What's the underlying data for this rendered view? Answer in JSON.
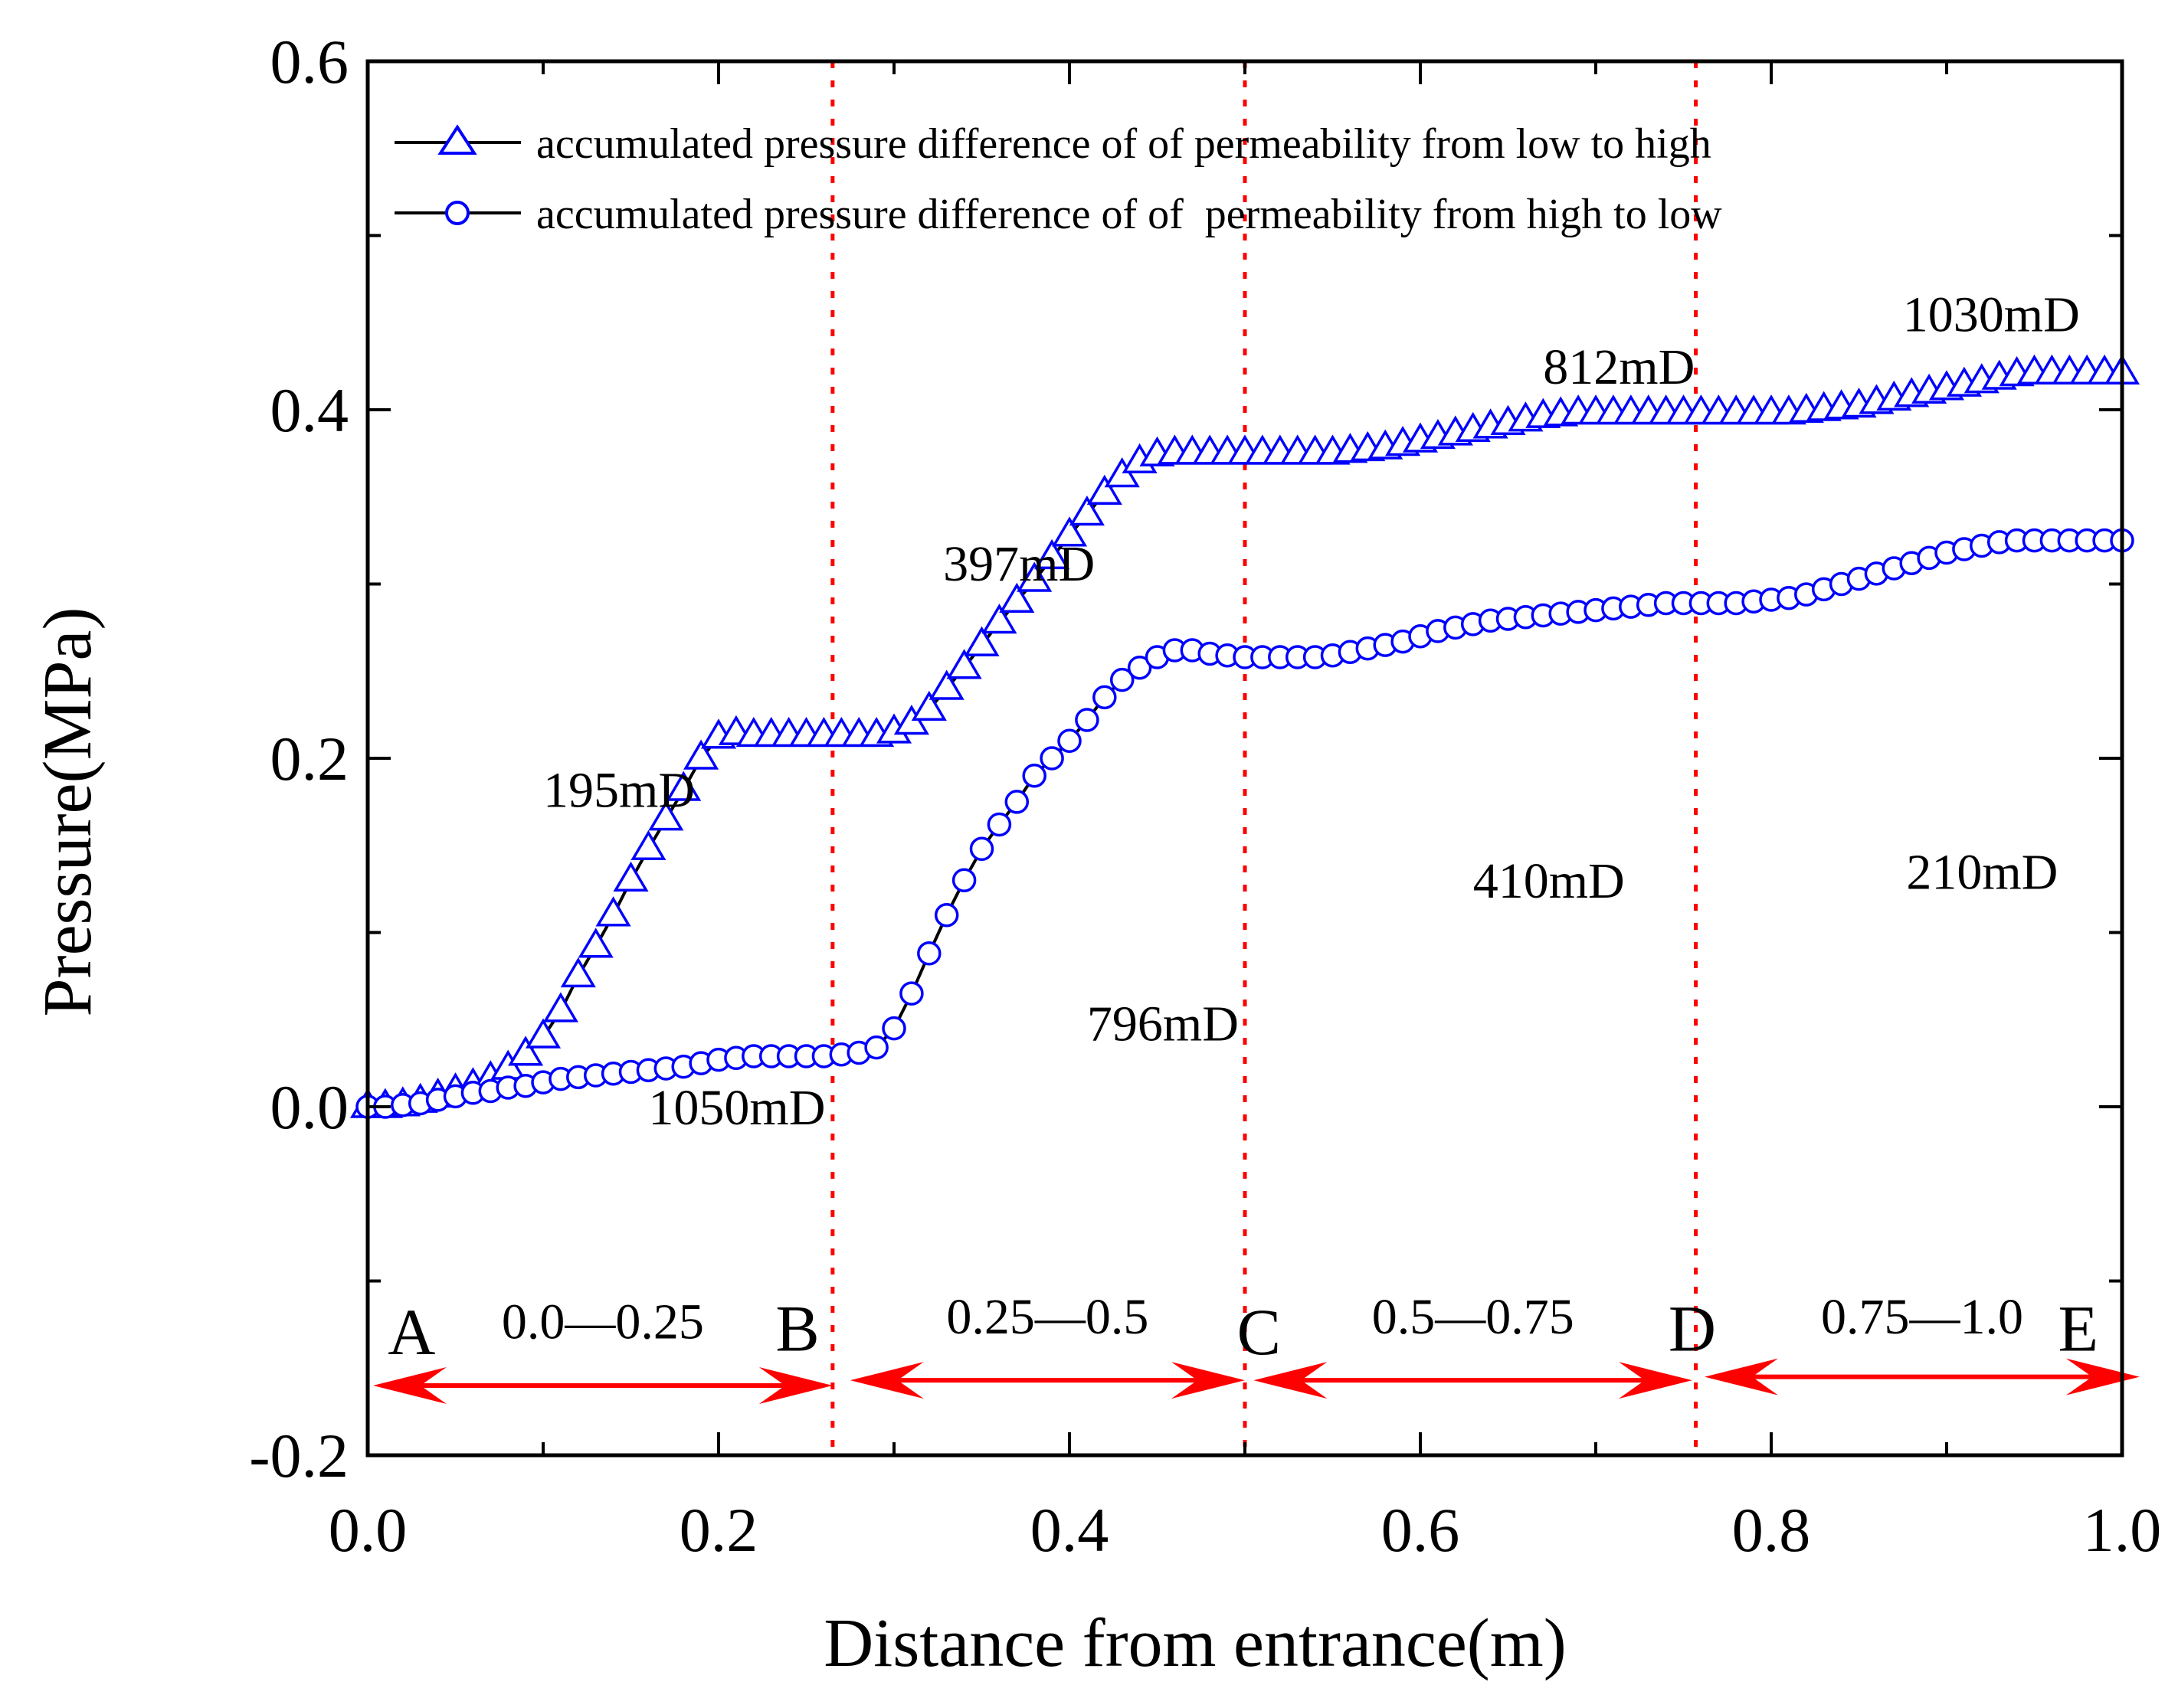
{
  "chart_data": {
    "type": "line",
    "xlabel": "Distance from entrance(m)",
    "ylabel": "Pressure(MPa)",
    "xlim": [
      0.0,
      1.0
    ],
    "ylim": [
      -0.2,
      0.6
    ],
    "x_ticks": [
      "0.0",
      "0.2",
      "0.4",
      "0.6",
      "0.8",
      "1.0"
    ],
    "y_ticks": [
      "-0.2",
      "0.0",
      "0.2",
      "0.4",
      "0.6"
    ],
    "x_tick_values": [
      0.0,
      0.2,
      0.4,
      0.6,
      0.8,
      1.0
    ],
    "y_tick_values": [
      -0.2,
      0.0,
      0.2,
      0.4,
      0.6
    ],
    "grid": false,
    "legend_position": "top",
    "section_lines_x": [
      0.265,
      0.5,
      0.757
    ],
    "series": [
      {
        "name": "accumulated pressure difference of of permeability from low to high",
        "marker": "triangle",
        "color": "#0000ff",
        "x": [
          0.0,
          0.01,
          0.02,
          0.03,
          0.04,
          0.05,
          0.06,
          0.07,
          0.08,
          0.09,
          0.1,
          0.11,
          0.12,
          0.13,
          0.14,
          0.15,
          0.16,
          0.17,
          0.18,
          0.19,
          0.2,
          0.21,
          0.22,
          0.23,
          0.24,
          0.25,
          0.26,
          0.27,
          0.28,
          0.29,
          0.3,
          0.31,
          0.32,
          0.33,
          0.34,
          0.35,
          0.36,
          0.37,
          0.38,
          0.39,
          0.4,
          0.41,
          0.42,
          0.43,
          0.44,
          0.45,
          0.46,
          0.47,
          0.48,
          0.49,
          0.5,
          0.51,
          0.52,
          0.53,
          0.54,
          0.55,
          0.56,
          0.57,
          0.58,
          0.59,
          0.6,
          0.61,
          0.62,
          0.63,
          0.64,
          0.65,
          0.66,
          0.67,
          0.68,
          0.69,
          0.7,
          0.71,
          0.72,
          0.73,
          0.74,
          0.75,
          0.76,
          0.77,
          0.78,
          0.79,
          0.8,
          0.81,
          0.82,
          0.83,
          0.84,
          0.85,
          0.86,
          0.87,
          0.88,
          0.89,
          0.9,
          0.91,
          0.92,
          0.93,
          0.94,
          0.95,
          0.96,
          0.97,
          0.98,
          0.99,
          1.0
        ],
        "values": [
          0.0,
          0.0,
          0.001,
          0.003,
          0.006,
          0.009,
          0.012,
          0.016,
          0.022,
          0.03,
          0.04,
          0.055,
          0.075,
          0.092,
          0.11,
          0.13,
          0.148,
          0.165,
          0.182,
          0.2,
          0.212,
          0.214,
          0.213,
          0.213,
          0.213,
          0.213,
          0.213,
          0.213,
          0.213,
          0.213,
          0.215,
          0.22,
          0.228,
          0.24,
          0.252,
          0.265,
          0.278,
          0.29,
          0.302,
          0.315,
          0.328,
          0.34,
          0.352,
          0.362,
          0.37,
          0.374,
          0.375,
          0.375,
          0.375,
          0.375,
          0.375,
          0.375,
          0.375,
          0.375,
          0.375,
          0.375,
          0.376,
          0.377,
          0.378,
          0.38,
          0.382,
          0.384,
          0.386,
          0.388,
          0.39,
          0.392,
          0.394,
          0.396,
          0.397,
          0.398,
          0.398,
          0.398,
          0.398,
          0.398,
          0.398,
          0.398,
          0.398,
          0.398,
          0.398,
          0.398,
          0.398,
          0.398,
          0.399,
          0.4,
          0.401,
          0.402,
          0.404,
          0.406,
          0.408,
          0.41,
          0.412,
          0.414,
          0.416,
          0.418,
          0.42,
          0.421,
          0.421,
          0.421,
          0.421,
          0.421,
          0.421
        ]
      },
      {
        "name": "accumulated pressure difference of of  permeability from high to low",
        "marker": "circle",
        "color": "#0000ff",
        "x": [
          0.0,
          0.01,
          0.02,
          0.03,
          0.04,
          0.05,
          0.06,
          0.07,
          0.08,
          0.09,
          0.1,
          0.11,
          0.12,
          0.13,
          0.14,
          0.15,
          0.16,
          0.17,
          0.18,
          0.19,
          0.2,
          0.21,
          0.22,
          0.23,
          0.24,
          0.25,
          0.26,
          0.27,
          0.28,
          0.29,
          0.3,
          0.31,
          0.32,
          0.33,
          0.34,
          0.35,
          0.36,
          0.37,
          0.38,
          0.39,
          0.4,
          0.41,
          0.42,
          0.43,
          0.44,
          0.45,
          0.46,
          0.47,
          0.48,
          0.49,
          0.5,
          0.51,
          0.52,
          0.53,
          0.54,
          0.55,
          0.56,
          0.57,
          0.58,
          0.59,
          0.6,
          0.61,
          0.62,
          0.63,
          0.64,
          0.65,
          0.66,
          0.67,
          0.68,
          0.69,
          0.7,
          0.71,
          0.72,
          0.73,
          0.74,
          0.75,
          0.76,
          0.77,
          0.78,
          0.79,
          0.8,
          0.81,
          0.82,
          0.83,
          0.84,
          0.85,
          0.86,
          0.87,
          0.88,
          0.89,
          0.9,
          0.91,
          0.92,
          0.93,
          0.94,
          0.95,
          0.96,
          0.97,
          0.98,
          0.99,
          1.0
        ],
        "values": [
          0.0,
          0.0,
          0.001,
          0.002,
          0.004,
          0.006,
          0.008,
          0.009,
          0.011,
          0.012,
          0.014,
          0.016,
          0.017,
          0.018,
          0.019,
          0.02,
          0.021,
          0.022,
          0.023,
          0.025,
          0.027,
          0.028,
          0.029,
          0.029,
          0.029,
          0.029,
          0.029,
          0.03,
          0.031,
          0.034,
          0.045,
          0.065,
          0.088,
          0.11,
          0.13,
          0.148,
          0.162,
          0.175,
          0.19,
          0.2,
          0.21,
          0.222,
          0.235,
          0.245,
          0.252,
          0.258,
          0.262,
          0.262,
          0.26,
          0.259,
          0.258,
          0.258,
          0.258,
          0.258,
          0.258,
          0.259,
          0.261,
          0.263,
          0.265,
          0.267,
          0.27,
          0.273,
          0.275,
          0.277,
          0.279,
          0.28,
          0.281,
          0.282,
          0.283,
          0.284,
          0.285,
          0.286,
          0.287,
          0.288,
          0.289,
          0.289,
          0.289,
          0.289,
          0.289,
          0.29,
          0.291,
          0.292,
          0.294,
          0.297,
          0.3,
          0.303,
          0.306,
          0.309,
          0.312,
          0.315,
          0.318,
          0.32,
          0.322,
          0.324,
          0.325,
          0.325,
          0.325,
          0.325,
          0.325,
          0.325,
          0.325
        ]
      }
    ],
    "annotations": {
      "permeability": [
        {
          "text": "195mD",
          "x": 0.1,
          "y": 0.172
        },
        {
          "text": "1050mD",
          "x": 0.16,
          "y": -0.01
        },
        {
          "text": "397mD",
          "x": 0.328,
          "y": 0.302
        },
        {
          "text": "796mD",
          "x": 0.41,
          "y": 0.038
        },
        {
          "text": "812mD",
          "x": 0.67,
          "y": 0.415
        },
        {
          "text": "410mD",
          "x": 0.63,
          "y": 0.12
        },
        {
          "text": "1030mD",
          "x": 0.875,
          "y": 0.445
        },
        {
          "text": "210mD",
          "x": 0.877,
          "y": 0.125
        }
      ],
      "points": [
        {
          "text": "A",
          "x": 0.025,
          "y": -0.142
        },
        {
          "text": "B",
          "x": 0.245,
          "y": -0.14
        },
        {
          "text": "C",
          "x": 0.508,
          "y": -0.142
        },
        {
          "text": "D",
          "x": 0.755,
          "y": -0.14
        },
        {
          "text": "E",
          "x": 0.975,
          "y": -0.14
        }
      ],
      "segments": [
        {
          "text": "0.0—0.25",
          "from": 0.003,
          "to": 0.265,
          "y": -0.16,
          "label_y": -0.133
        },
        {
          "text": "0.25—0.5",
          "from": 0.275,
          "to": 0.5,
          "y": -0.157,
          "label_y": -0.13
        },
        {
          "text": "0.5—0.75",
          "from": 0.505,
          "to": 0.755,
          "y": -0.157,
          "label_y": -0.13
        },
        {
          "text": "0.75—1.0",
          "from": 0.762,
          "to": 1.01,
          "y": -0.155,
          "label_y": -0.13
        }
      ]
    }
  }
}
